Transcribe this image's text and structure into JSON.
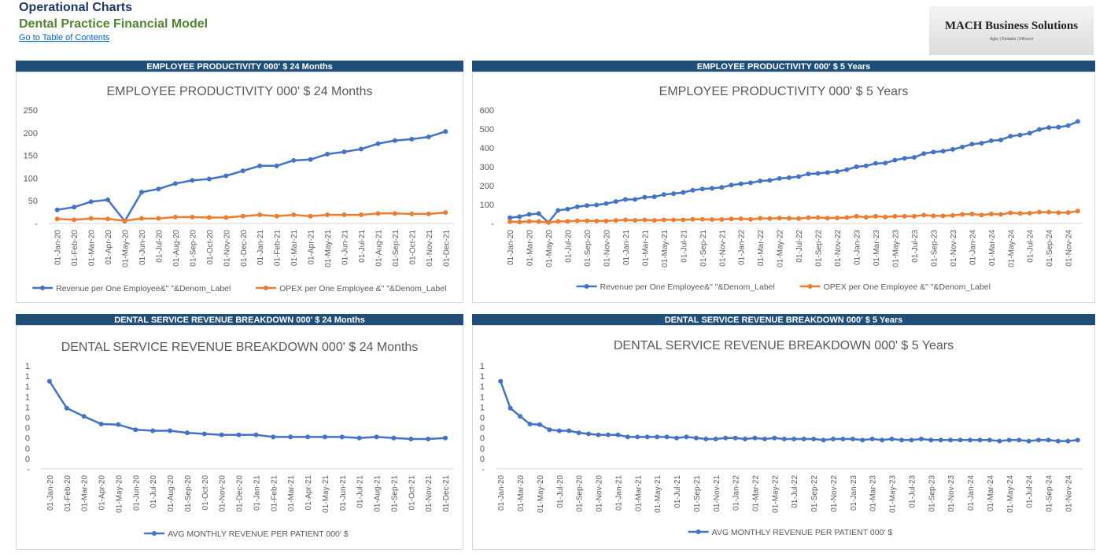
{
  "header": {
    "title": "Operational Charts",
    "subtitle": "Dental Practice Financial Model",
    "link": "Go to Table of Contents",
    "logo": "MACH Business Solutions",
    "tagline": "Agile | Reliable | Efficient"
  },
  "chart_data": [
    {
      "type": "line",
      "banner": "EMPLOYEE PRODUCTIVITY  000' $ 24 Months",
      "title": "EMPLOYEE PRODUCTIVITY  000' $ 24 Months",
      "categories": [
        "01-Jan-20",
        "01-Feb-20",
        "01-Mar-20",
        "01-Apr-20",
        "01-May-20",
        "01-Jun-20",
        "01-Jul-20",
        "01-Aug-20",
        "01-Sep-20",
        "01-Oct-20",
        "01-Nov-20",
        "01-Dec-20",
        "01-Jan-21",
        "01-Feb-21",
        "01-Mar-21",
        "01-Apr-21",
        "01-May-21",
        "01-Jun-21",
        "01-Jul-21",
        "01-Aug-21",
        "01-Sep-21",
        "01-Oct-21",
        "01-Nov-21",
        "01-Dec-21"
      ],
      "series": [
        {
          "name": "Revenue per One Employee&\" \"&Denom_Label",
          "color": "#4472c4",
          "values": [
            30,
            36,
            48,
            52,
            5,
            69,
            76,
            88,
            95,
            98,
            105,
            116,
            127,
            127,
            139,
            141,
            153,
            158,
            164,
            176,
            183,
            186,
            191,
            203
          ]
        },
        {
          "name": "OPEX per One Employee &\" \"&Denom_Label",
          "color": "#ed7d31",
          "values": [
            10,
            8,
            11,
            10,
            6,
            11,
            11,
            14,
            14,
            13,
            13,
            16,
            19,
            16,
            19,
            16,
            19,
            19,
            19,
            22,
            22,
            21,
            21,
            24
          ]
        }
      ],
      "ylim": [
        0,
        250
      ],
      "yticks": [
        {
          "value": 0,
          "label": "-"
        },
        50,
        100,
        150,
        200,
        250
      ],
      "grid": false,
      "legend": "bottom"
    },
    {
      "type": "line",
      "banner": "EMPLOYEE PRODUCTIVITY 000' $ 5 Years",
      "title": "EMPLOYEE PRODUCTIVITY 000' $ 5 Years",
      "categories": [
        "01-Jan-20",
        null,
        "01-Mar-20",
        null,
        "01-May-20",
        null,
        "01-Jul-20",
        null,
        "01-Sep-20",
        null,
        "01-Nov-20",
        null,
        "01-Jan-21",
        null,
        "01-Mar-21",
        null,
        "01-May-21",
        null,
        "01-Jul-21",
        null,
        "01-Sep-21",
        null,
        "01-Nov-21",
        null,
        "01-Jan-22",
        null,
        "01-Mar-22",
        null,
        "01-May-22",
        null,
        "01-Jul-22",
        null,
        "01-Sep-22",
        null,
        "01-Nov-22",
        null,
        "01-Jan-23",
        null,
        "01-Mar-23",
        null,
        "01-May-23",
        null,
        "01-Jul-23",
        null,
        "01-Sep-23",
        null,
        "01-Nov-23",
        null,
        "01-Jan-24",
        null,
        "01-Mar-24",
        null,
        "01-May-24",
        null,
        "01-Jul-24",
        null,
        "01-Sep-24",
        null,
        "01-Nov-24",
        null
      ],
      "series": [
        {
          "name": "Revenue per One Employee&\" \"&Denom_Label",
          "color": "#4472c4",
          "values": [
            30,
            36,
            48,
            52,
            5,
            69,
            76,
            88,
            95,
            98,
            105,
            116,
            127,
            127,
            139,
            141,
            153,
            158,
            164,
            176,
            183,
            186,
            191,
            203,
            210,
            215,
            225,
            228,
            238,
            242,
            248,
            262,
            265,
            270,
            275,
            285,
            300,
            305,
            318,
            320,
            335,
            345,
            350,
            370,
            378,
            383,
            392,
            405,
            420,
            425,
            438,
            442,
            462,
            468,
            478,
            498,
            508,
            510,
            518,
            540
          ]
        },
        {
          "name": "OPEX per One Employee &\" \"&Denom_Label",
          "color": "#ed7d31",
          "values": [
            10,
            8,
            11,
            10,
            6,
            11,
            11,
            14,
            14,
            13,
            13,
            16,
            19,
            16,
            19,
            16,
            19,
            19,
            19,
            22,
            22,
            21,
            21,
            24,
            25,
            22,
            27,
            26,
            28,
            27,
            26,
            30,
            31,
            28,
            29,
            31,
            38,
            33,
            38,
            34,
            38,
            38,
            38,
            44,
            40,
            40,
            42,
            48,
            50,
            45,
            50,
            48,
            56,
            53,
            54,
            60,
            60,
            57,
            58,
            65
          ]
        }
      ],
      "ylim": [
        0,
        600
      ],
      "yticks": [
        {
          "value": 0,
          "label": "-"
        },
        100,
        200,
        300,
        400,
        500,
        600
      ],
      "grid": false,
      "legend": "bottom"
    },
    {
      "type": "line",
      "banner": "DENTAL SERVICE REVENUE BREAKDOWN 000' $ 24 Months",
      "title": "DENTAL SERVICE REVENUE BREAKDOWN 000' $ 24 Months",
      "categories": [
        "01-Jan-20",
        "01-Feb-20",
        "01-Mar-20",
        "01-Apr-20",
        "01-May-20",
        "01-Jun-20",
        "01-Jul-20",
        "01-Aug-20",
        "01-Sep-20",
        "01-Oct-20",
        "01-Nov-20",
        "01-Dec-20",
        "01-Jan-21",
        "01-Feb-21",
        "01-Mar-21",
        "01-Apr-21",
        "01-May-21",
        "01-Jun-21",
        "01-Jul-21",
        "01-Aug-21",
        "01-Sep-21",
        "01-Oct-21",
        "01-Nov-21",
        "01-Dec-21"
      ],
      "series": [
        {
          "name": "AVG MONTHLY REVENUE PER PATIENT 000' $",
          "color": "#4472c4",
          "values": [
            0.85,
            0.59,
            0.51,
            0.435,
            0.43,
            0.38,
            0.37,
            0.37,
            0.35,
            0.34,
            0.33,
            0.33,
            0.33,
            0.31,
            0.31,
            0.31,
            0.31,
            0.31,
            0.3,
            0.31,
            0.3,
            0.29,
            0.29,
            0.3
          ]
        }
      ],
      "ylim": [
        0,
        1
      ],
      "yticks": [
        {
          "value": 0,
          "label": "-"
        },
        {
          "value": 0.1,
          "label": "0"
        },
        {
          "value": 0.2,
          "label": "0"
        },
        {
          "value": 0.3,
          "label": "0"
        },
        {
          "value": 0.4,
          "label": "0"
        },
        {
          "value": 0.5,
          "label": "0"
        },
        {
          "value": 0.6,
          "label": "1"
        },
        {
          "value": 0.7,
          "label": "1"
        },
        {
          "value": 0.8,
          "label": "1"
        },
        {
          "value": 0.9,
          "label": "1"
        },
        1
      ],
      "grid": false,
      "legend": "bottom"
    },
    {
      "type": "line",
      "banner": "DENTAL SERVICE REVENUE BREAKDOWN 000' $ 5 Years",
      "title": "DENTAL SERVICE REVENUE BREAKDOWN 000' $ 5 Years",
      "categories": [
        "01-Jan-20",
        null,
        "01-Mar-20",
        null,
        "01-May-20",
        null,
        "01-Jul-20",
        null,
        "01-Sep-20",
        null,
        "01-Nov-20",
        null,
        "01-Jan-21",
        null,
        "01-Mar-21",
        null,
        "01-May-21",
        null,
        "01-Jul-21",
        null,
        "01-Sep-21",
        null,
        "01-Nov-21",
        null,
        "01-Jan-22",
        null,
        "01-Mar-22",
        null,
        "01-May-22",
        null,
        "01-Jul-22",
        null,
        "01-Sep-22",
        null,
        "01-Nov-22",
        null,
        "01-Jan-23",
        null,
        "01-Mar-23",
        null,
        "01-May-23",
        null,
        "01-Jul-23",
        null,
        "01-Sep-23",
        null,
        "01-Nov-23",
        null,
        "01-Jan-24",
        null,
        "01-Mar-24",
        null,
        "01-May-24",
        null,
        "01-Jul-24",
        null,
        "01-Sep-24",
        null,
        "01-Nov-24",
        null
      ],
      "series": [
        {
          "name": "AVG MONTHLY REVENUE PER PATIENT 000' $",
          "color": "#4472c4",
          "values": [
            0.85,
            0.59,
            0.51,
            0.435,
            0.43,
            0.38,
            0.37,
            0.37,
            0.35,
            0.34,
            0.33,
            0.33,
            0.33,
            0.31,
            0.31,
            0.31,
            0.31,
            0.31,
            0.3,
            0.31,
            0.3,
            0.29,
            0.29,
            0.3,
            0.3,
            0.29,
            0.3,
            0.29,
            0.3,
            0.29,
            0.29,
            0.29,
            0.29,
            0.28,
            0.29,
            0.29,
            0.29,
            0.28,
            0.29,
            0.28,
            0.29,
            0.28,
            0.28,
            0.29,
            0.28,
            0.28,
            0.28,
            0.28,
            0.28,
            0.28,
            0.28,
            0.27,
            0.28,
            0.28,
            0.27,
            0.28,
            0.28,
            0.27,
            0.27,
            0.28
          ]
        }
      ],
      "ylim": [
        0,
        1
      ],
      "yticks": [
        {
          "value": 0,
          "label": "-"
        },
        {
          "value": 0.1,
          "label": "0"
        },
        {
          "value": 0.2,
          "label": "0"
        },
        {
          "value": 0.3,
          "label": "0"
        },
        {
          "value": 0.4,
          "label": "0"
        },
        {
          "value": 0.5,
          "label": "0"
        },
        {
          "value": 0.6,
          "label": "1"
        },
        {
          "value": 0.7,
          "label": "1"
        },
        {
          "value": 0.8,
          "label": "1"
        },
        {
          "value": 0.9,
          "label": "1"
        },
        1
      ],
      "grid": false,
      "legend": "bottom"
    }
  ]
}
